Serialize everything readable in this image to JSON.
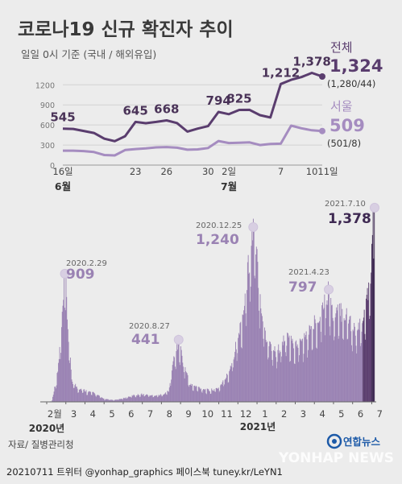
{
  "header": {
    "title": "코로나19 신규 확진자 추이",
    "subtitle": "일일 0시 기준 (국내 / 해외유입)"
  },
  "chart_data": [
    {
      "type": "line",
      "y_ticks": [
        0,
        300,
        600,
        900,
        1200
      ],
      "ylim": [
        0,
        1300
      ],
      "x_tick_labels": [
        "16일",
        "23",
        "26",
        "30",
        "2일",
        "7",
        "10",
        "11일"
      ],
      "x_tick_days": [
        0,
        7,
        10,
        14,
        16,
        21,
        24,
        25
      ],
      "month_labels": [
        "6월",
        "7월"
      ],
      "series": [
        {
          "name": "전체",
          "color": "#5a3d6e",
          "days": [
            0,
            1,
            2,
            3,
            4,
            5,
            6,
            7,
            8,
            9,
            10,
            11,
            12,
            13,
            14,
            15,
            16,
            17,
            18,
            19,
            20,
            21,
            22,
            23,
            24,
            25
          ],
          "values": [
            545,
            540,
            510,
            480,
            395,
            357,
            432,
            645,
            626,
            645,
            668,
            628,
            501,
            545,
            582,
            794,
            761,
            825,
            826,
            746,
            711,
            1212,
            1275,
            1316,
            1378,
            1324
          ],
          "labels": [
            {
              "day": 0,
              "text": "545"
            },
            {
              "day": 7,
              "text": "645"
            },
            {
              "day": 10,
              "text": "668"
            },
            {
              "day": 15,
              "text": "794"
            },
            {
              "day": 17,
              "text": "825"
            },
            {
              "day": 21,
              "text": "1,212"
            },
            {
              "day": 24,
              "text": "1,378"
            }
          ]
        },
        {
          "name": "서울",
          "color": "#a58cc0",
          "days": [
            0,
            1,
            2,
            3,
            4,
            5,
            6,
            7,
            8,
            9,
            10,
            11,
            12,
            13,
            14,
            15,
            16,
            17,
            18,
            19,
            20,
            21,
            22,
            23,
            24,
            25
          ],
          "values": [
            215,
            215,
            210,
            195,
            150,
            145,
            225,
            240,
            250,
            265,
            270,
            260,
            230,
            235,
            255,
            360,
            330,
            335,
            340,
            300,
            315,
            320,
            590,
            550,
            520,
            509
          ],
          "labels": []
        }
      ],
      "end_labels": {
        "total": {
          "name": "전체",
          "value": "1,324",
          "detail": "(1,280/44)"
        },
        "seoul": {
          "name": "서울",
          "value": "509",
          "detail": "(501/8)"
        }
      }
    },
    {
      "type": "bar",
      "x_tick_labels": [
        "2월",
        "3",
        "4",
        "5",
        "6",
        "7",
        "8",
        "9",
        "10",
        "11",
        "12",
        "1",
        "2",
        "3",
        "4",
        "5",
        "6",
        "7"
      ],
      "year_labels": [
        "2020년",
        "2021년"
      ],
      "ylim": [
        0,
        1400
      ],
      "annotations": [
        {
          "date": "2020.2.29",
          "value": "909"
        },
        {
          "date": "2020.8.27",
          "value": "441"
        },
        {
          "date": "2020.12.25",
          "value": "1,240"
        },
        {
          "date": "2021.4.23",
          "value": "797"
        },
        {
          "date": "2021.7.10",
          "value": "1,378"
        }
      ],
      "anchors": [
        {
          "m": 0,
          "v": 0
        },
        {
          "m": 0.25,
          "v": 5
        },
        {
          "m": 0.55,
          "v": 200
        },
        {
          "m": 0.75,
          "v": 500
        },
        {
          "m": 0.95,
          "v": 909
        },
        {
          "m": 1.1,
          "v": 500
        },
        {
          "m": 1.3,
          "v": 150
        },
        {
          "m": 1.6,
          "v": 100
        },
        {
          "m": 2.0,
          "v": 80
        },
        {
          "m": 2.5,
          "v": 60
        },
        {
          "m": 3.0,
          "v": 20
        },
        {
          "m": 3.5,
          "v": 12
        },
        {
          "m": 4.0,
          "v": 25
        },
        {
          "m": 4.5,
          "v": 45
        },
        {
          "m": 5.0,
          "v": 55
        },
        {
          "m": 5.5,
          "v": 45
        },
        {
          "m": 6.0,
          "v": 50
        },
        {
          "m": 6.4,
          "v": 80
        },
        {
          "m": 6.55,
          "v": 250
        },
        {
          "m": 6.9,
          "v": 441
        },
        {
          "m": 7.1,
          "v": 300
        },
        {
          "m": 7.5,
          "v": 120
        },
        {
          "m": 8.0,
          "v": 100
        },
        {
          "m": 8.5,
          "v": 80
        },
        {
          "m": 9.0,
          "v": 100
        },
        {
          "m": 9.5,
          "v": 200
        },
        {
          "m": 10.0,
          "v": 450
        },
        {
          "m": 10.3,
          "v": 650
        },
        {
          "m": 10.5,
          "v": 900
        },
        {
          "m": 10.8,
          "v": 1240
        },
        {
          "m": 11.0,
          "v": 1000
        },
        {
          "m": 11.3,
          "v": 600
        },
        {
          "m": 11.5,
          "v": 450
        },
        {
          "m": 12.0,
          "v": 350
        },
        {
          "m": 12.5,
          "v": 450
        },
        {
          "m": 13.0,
          "v": 400
        },
        {
          "m": 13.5,
          "v": 450
        },
        {
          "m": 14.0,
          "v": 550
        },
        {
          "m": 14.5,
          "v": 700
        },
        {
          "m": 14.75,
          "v": 797
        },
        {
          "m": 15.0,
          "v": 600
        },
        {
          "m": 15.5,
          "v": 650
        },
        {
          "m": 16.0,
          "v": 550
        },
        {
          "m": 16.3,
          "v": 500
        },
        {
          "m": 16.6,
          "v": 600
        },
        {
          "m": 16.9,
          "v": 800
        },
        {
          "m": 17.1,
          "v": 1300
        },
        {
          "m": 17.15,
          "v": 1378
        }
      ]
    }
  ],
  "footer": {
    "source": "자료/ 질병관리청",
    "credit": "20210711  트위터 @yonhap_graphics  페이스북 tuney.kr/LeYN1",
    "logo_text": "연합뉴스",
    "watermark": "YONHAP NEWS"
  }
}
